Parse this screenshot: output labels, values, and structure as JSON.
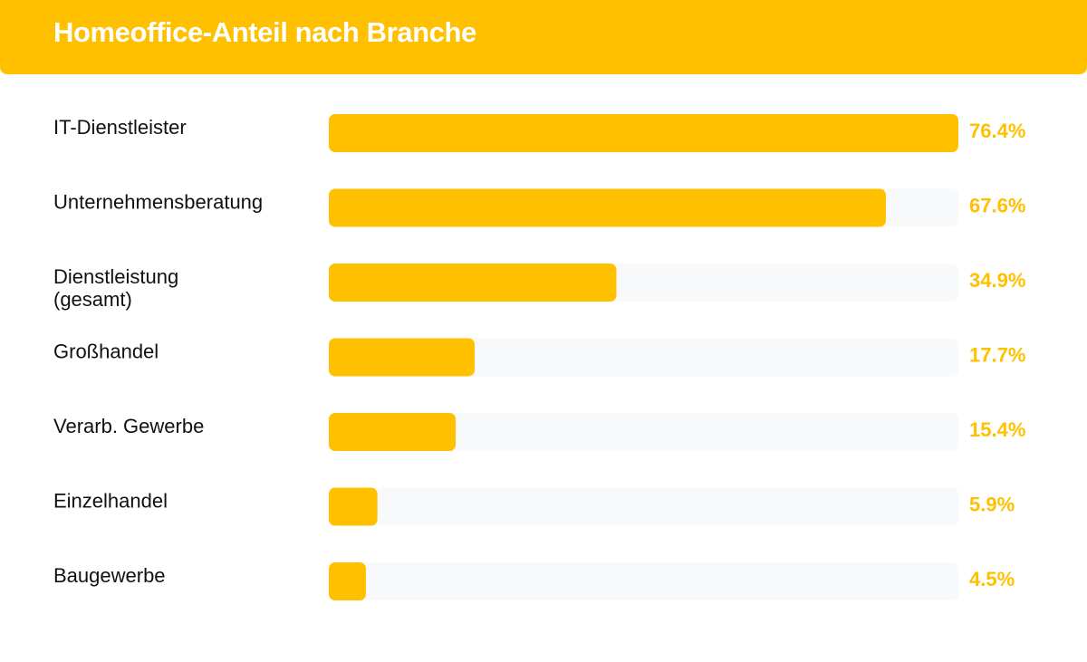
{
  "chart_data": {
    "type": "bar",
    "orientation": "horizontal",
    "title": "Homeoffice-Anteil nach Branche",
    "categories": [
      [
        "IT-Dienstleister"
      ],
      [
        "Unternehmensberatung"
      ],
      [
        "Dienstleistung",
        "(gesamt)"
      ],
      [
        "Großhandel"
      ],
      [
        "Verarb. Gewerbe"
      ],
      [
        "Einzelhandel"
      ],
      [
        "Baugewerbe"
      ]
    ],
    "values": [
      76.4,
      67.6,
      34.9,
      17.7,
      15.4,
      5.9,
      4.5
    ],
    "value_labels": [
      "76.4%",
      "67.6%",
      "34.9%",
      "17.7%",
      "15.4%",
      "5.9%",
      "4.5%"
    ],
    "unit": "%",
    "xlim": [
      0,
      76.4
    ],
    "grid": false,
    "legend": "none",
    "colors": {
      "bar": "#FFC000",
      "track": "#F8F9FB",
      "value_text": "#FFC000",
      "label_text": "#111111",
      "header_bg": "#FFC000",
      "title_text": "#FFFFFF"
    }
  }
}
